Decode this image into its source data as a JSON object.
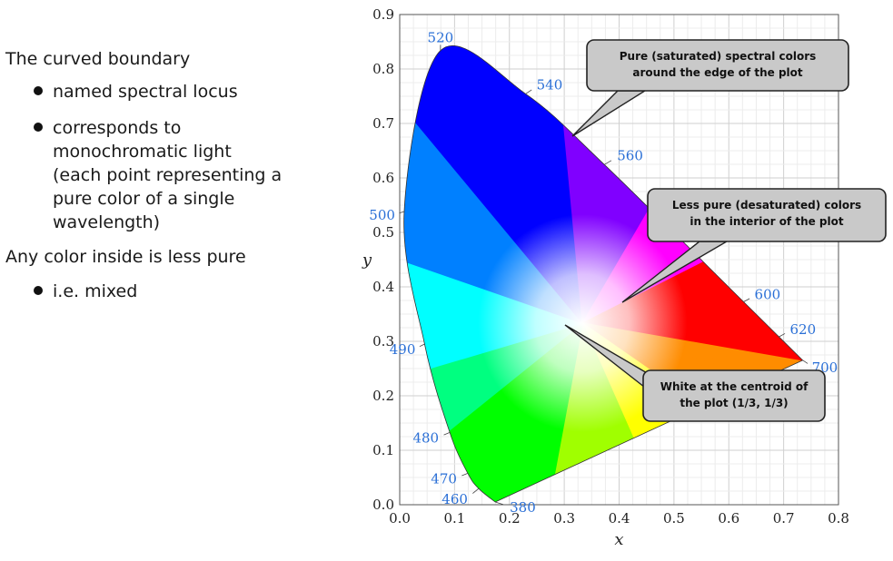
{
  "text_panel": {
    "intro": "The curved boundary",
    "bullets1": [
      "named spectral locus",
      "corresponds to",
      "monochromatic light",
      "(each point representing a",
      "pure color of a single",
      "wavelength)"
    ],
    "para2": "Any color inside is less pure",
    "bullets2": [
      "i.e. mixed"
    ]
  },
  "chart_data": {
    "type": "scatter",
    "title": "",
    "xlabel": "x",
    "ylabel": "y",
    "xlim": [
      0.0,
      0.8
    ],
    "ylim": [
      0.0,
      0.9
    ],
    "grid": true,
    "x_ticks": [
      "0.0",
      "0.1",
      "0.2",
      "0.3",
      "0.4",
      "0.5",
      "0.6",
      "0.7",
      "0.8"
    ],
    "y_ticks": [
      "0.0",
      "0.1",
      "0.2",
      "0.3",
      "0.4",
      "0.5",
      "0.6",
      "0.7",
      "0.8",
      "0.9"
    ],
    "spectral_locus": [
      {
        "wavelength": "380",
        "x": 0.1741,
        "y": 0.005
      },
      {
        "wavelength": "460",
        "x": 0.144,
        "y": 0.0297
      },
      {
        "wavelength": "470",
        "x": 0.1241,
        "y": 0.0578
      },
      {
        "wavelength": "480",
        "x": 0.0913,
        "y": 0.1327
      },
      {
        "wavelength": "490",
        "x": 0.0454,
        "y": 0.295
      },
      {
        "wavelength": "500",
        "x": 0.0082,
        "y": 0.5384
      },
      {
        "wavelength": "520",
        "x": 0.0743,
        "y": 0.8338
      },
      {
        "wavelength": "540",
        "x": 0.2296,
        "y": 0.7543
      },
      {
        "wavelength": "560",
        "x": 0.3731,
        "y": 0.6245
      },
      {
        "wavelength": "600",
        "x": 0.627,
        "y": 0.3725
      },
      {
        "wavelength": "620",
        "x": 0.6915,
        "y": 0.3083
      },
      {
        "wavelength": "700",
        "x": 0.7347,
        "y": 0.2653
      }
    ],
    "annotations": [
      {
        "text": [
          "Pure (saturated) spectral colors",
          "around the edge of the plot"
        ]
      },
      {
        "text": [
          "Less pure (desaturated) colors",
          "in the interior of the plot"
        ]
      },
      {
        "text": [
          "White at the centroid of",
          "the plot (1/3, 1/3)"
        ]
      }
    ],
    "colors": {
      "label_blue": "#2a6fd6",
      "callout_fill": "#c9c9c9",
      "grid": "#d8d8d8"
    }
  }
}
